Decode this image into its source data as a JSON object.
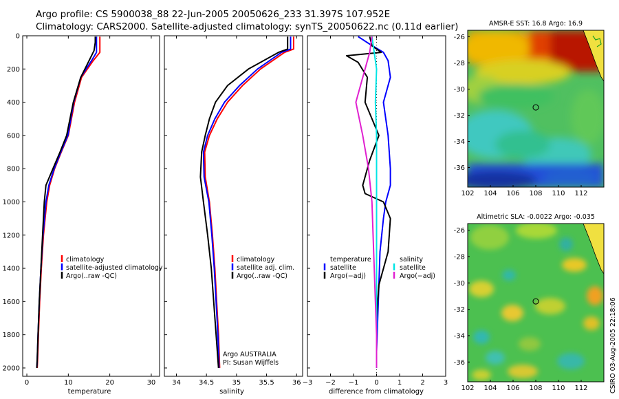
{
  "header": {
    "line1": "Argo profile: CS 5900038_88 22-Jun-2005 20050626_233 31.397S 107.952E",
    "line2": "Climatology: CARS2000. Satellite-adjusted climatology: synTS_20050622.nc (0.11d earlier)"
  },
  "credit": "CSIRO 03-Aug-2005 22:18:06",
  "colors": {
    "climatology": "#ff0000",
    "satellite": "#0000ff",
    "argo": "#000000",
    "salinity_satellite": "#00e5e5",
    "salinity_argo": "#e020d0",
    "zero_line": "#000000"
  },
  "chart_data": [
    {
      "type": "line",
      "id": "temperature",
      "xlabel": "temperature",
      "ylabel": "",
      "xlim": [
        -1,
        32
      ],
      "ylim": [
        2050,
        0
      ],
      "xticks": [
        "0",
        "10",
        "20",
        "30"
      ],
      "xtick_values": [
        0,
        10,
        20,
        30
      ],
      "yticks": [
        "0",
        "200",
        "400",
        "600",
        "800",
        "1000",
        "1200",
        "1400",
        "1600",
        "1800",
        "2000"
      ],
      "ytick_values": [
        0,
        200,
        400,
        600,
        800,
        1000,
        1200,
        1400,
        1600,
        1800,
        2000
      ],
      "legend": [
        "climatology",
        "satellite-adjusted climatology",
        "Argo(..raw -QC)"
      ],
      "series": [
        {
          "name": "climatology",
          "color_key": "climatology",
          "x": [
            17.6,
            17.6,
            16.0,
            13.2,
            11.5,
            10.0,
            8.3,
            6.7,
            5.5,
            4.8,
            4.0,
            3.5,
            3.1,
            2.8,
            2.6,
            2.5
          ],
          "y": [
            5,
            100,
            150,
            250,
            400,
            600,
            700,
            800,
            900,
            1000,
            1200,
            1400,
            1600,
            1800,
            1950,
            2000
          ]
        },
        {
          "name": "satellite-adjusted climatology",
          "color_key": "satellite",
          "x": [
            16.8,
            16.8,
            15.6,
            13.0,
            11.3,
            9.9,
            8.2,
            6.6,
            5.3,
            4.6,
            3.9,
            3.4,
            3.0,
            2.7,
            2.5,
            2.4
          ],
          "y": [
            5,
            100,
            150,
            250,
            400,
            600,
            700,
            800,
            900,
            1000,
            1200,
            1400,
            1600,
            1800,
            1950,
            2000
          ]
        },
        {
          "name": "Argo(..raw -QC)",
          "color_key": "argo",
          "x": [
            16.5,
            16.5,
            16.2,
            15.0,
            13.0,
            11.2,
            9.6,
            8.0,
            6.3,
            4.6,
            4.2,
            3.8,
            3.4,
            3.0,
            2.7,
            2.5,
            2.4
          ],
          "y": [
            5,
            40,
            90,
            150,
            250,
            400,
            600,
            700,
            800,
            900,
            1000,
            1200,
            1400,
            1600,
            1800,
            1950,
            2000
          ]
        }
      ]
    },
    {
      "type": "line",
      "id": "salinity",
      "xlabel": "salinity",
      "ylabel": "",
      "xlim": [
        33.8,
        36.1
      ],
      "ylim": [
        2050,
        0
      ],
      "xticks": [
        "34",
        "34.5",
        "35",
        "35.5",
        "36"
      ],
      "xtick_values": [
        34,
        34.5,
        35,
        35.5,
        36
      ],
      "legend": [
        "climatology",
        "satellite adj. clim.",
        "Argo(..raw -QC)"
      ],
      "annotation": [
        "Argo AUSTRALIA",
        "PI: Susan Wijffels"
      ],
      "series": [
        {
          "name": "climatology",
          "color_key": "climatology",
          "x": [
            35.95,
            35.95,
            35.8,
            35.4,
            35.1,
            34.85,
            34.68,
            34.55,
            34.47,
            34.48,
            34.55,
            34.6,
            34.64,
            34.67,
            34.7,
            34.72
          ],
          "y": [
            5,
            80,
            100,
            200,
            300,
            400,
            500,
            600,
            700,
            850,
            1000,
            1200,
            1400,
            1600,
            1800,
            2000
          ]
        },
        {
          "name": "satellite adj. clim.",
          "color_key": "satellite",
          "x": [
            35.9,
            35.9,
            35.75,
            35.35,
            35.05,
            34.8,
            34.64,
            34.52,
            34.45,
            34.46,
            34.54,
            34.59,
            34.63,
            34.66,
            34.69,
            34.71
          ],
          "y": [
            5,
            80,
            100,
            200,
            300,
            400,
            500,
            600,
            700,
            850,
            1000,
            1200,
            1400,
            1600,
            1800,
            2000
          ]
        },
        {
          "name": "Argo(..raw -QC)",
          "color_key": "argo",
          "x": [
            35.85,
            35.85,
            35.7,
            35.2,
            34.85,
            34.65,
            34.55,
            34.48,
            34.42,
            34.4,
            34.45,
            34.52,
            34.58,
            34.62,
            34.66,
            34.7
          ],
          "y": [
            5,
            80,
            100,
            200,
            300,
            400,
            500,
            600,
            700,
            850,
            1000,
            1200,
            1400,
            1600,
            1800,
            2000
          ]
        }
      ]
    },
    {
      "type": "line",
      "id": "difference",
      "xlabel": "difference from climatology",
      "ylabel": "",
      "xlim": [
        -3,
        3
      ],
      "ylim": [
        2050,
        0
      ],
      "xticks": [
        "−3",
        "−2",
        "−1",
        "0",
        "1",
        "2",
        "3"
      ],
      "xtick_values": [
        -3,
        -2,
        -1,
        0,
        1,
        2,
        3
      ],
      "legend_left_title": "temperature",
      "legend_left": [
        "satellite",
        "Argo(−adj)"
      ],
      "legend_right_title": "salinity",
      "legend_right": [
        "satellite",
        "Argo(−adj)"
      ],
      "series": [
        {
          "name": "temperature satellite",
          "color_key": "satellite",
          "x": [
            -0.8,
            -0.3,
            0.3,
            0.5,
            0.6,
            0.3,
            0.5,
            0.6,
            0.6,
            0.4,
            0.3,
            0.15,
            0.1,
            0.05,
            0.0,
            0.0
          ],
          "y": [
            5,
            50,
            100,
            150,
            250,
            400,
            600,
            800,
            900,
            1000,
            1100,
            1300,
            1500,
            1700,
            1900,
            2000
          ]
        },
        {
          "name": "temperature Argo(−adj)",
          "color_key": "argo",
          "x": [
            -0.3,
            -0.2,
            0.2,
            -1.3,
            -0.8,
            -0.4,
            -0.5,
            0.1,
            -0.3,
            -0.6,
            -0.5,
            0.3,
            0.6,
            0.5,
            0.1,
            0.0,
            0.0,
            0.0
          ],
          "y": [
            5,
            60,
            100,
            120,
            160,
            250,
            400,
            600,
            750,
            900,
            950,
            1000,
            1100,
            1300,
            1500,
            1700,
            1900,
            2000
          ]
        },
        {
          "name": "salinity satellite",
          "color_key": "salinity_satellite",
          "x": [
            -0.2,
            -0.1,
            0.0,
            -0.05,
            0.0,
            0.0,
            0.0,
            0.0,
            0.0,
            0.0
          ],
          "y": [
            5,
            100,
            200,
            400,
            600,
            800,
            1000,
            1400,
            1800,
            2000
          ]
        },
        {
          "name": "salinity Argo(−adj)",
          "color_key": "salinity_argo",
          "x": [
            -0.2,
            -0.3,
            -0.5,
            -0.9,
            -0.6,
            -0.35,
            -0.2,
            -0.1,
            0.0,
            0.0
          ],
          "y": [
            5,
            100,
            200,
            400,
            600,
            800,
            1000,
            1400,
            1800,
            2000
          ]
        }
      ]
    },
    {
      "type": "heatmap",
      "id": "sst_map",
      "title": "AMSR-E SST: 16.8 Argo: 16.9",
      "xlim": [
        102,
        114
      ],
      "ylim": [
        -37.5,
        -25.5
      ],
      "xticks": [
        "102",
        "104",
        "106",
        "108",
        "110",
        "112"
      ],
      "xtick_values": [
        102,
        104,
        106,
        108,
        110,
        112
      ],
      "yticks": [
        "-26",
        "-28",
        "-30",
        "-32",
        "-34",
        "-36"
      ],
      "ytick_values": [
        -26,
        -28,
        -30,
        -32,
        -34,
        -36
      ],
      "marker": {
        "lon": 108.0,
        "lat": -31.4
      }
    },
    {
      "type": "heatmap",
      "id": "sla_map",
      "title": "Altimetric SLA: -0.0022 Argo: -0.035",
      "xlim": [
        102,
        114
      ],
      "ylim": [
        -37.5,
        -25.5
      ],
      "xticks": [
        "102",
        "104",
        "106",
        "108",
        "110",
        "112"
      ],
      "xtick_values": [
        102,
        104,
        106,
        108,
        110,
        112
      ],
      "yticks": [
        "-26",
        "-28",
        "-30",
        "-32",
        "-34",
        "-36"
      ],
      "ytick_values": [
        -26,
        -28,
        -30,
        -32,
        -34,
        -36
      ],
      "marker": {
        "lon": 108.0,
        "lat": -31.4
      }
    }
  ]
}
